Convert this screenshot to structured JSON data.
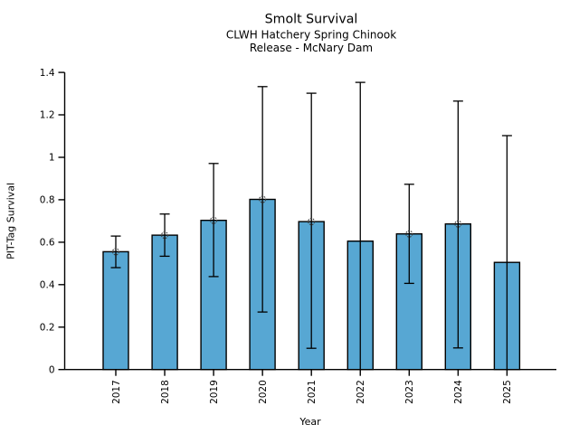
{
  "chart_data": {
    "type": "bar",
    "title": "Smolt Survival",
    "subtitle_lines": [
      "CLWH Hatchery Spring Chinook",
      "Release - McNary Dam"
    ],
    "xlabel": "Year",
    "ylabel": "PIT-Tag Survival",
    "ylim": [
      0,
      1.4
    ],
    "grid": false,
    "legend": "none",
    "ytick_values": [
      0,
      0.2,
      0.4,
      0.6,
      0.8,
      1,
      1.2,
      1.4
    ],
    "ytick_labels": [
      "0",
      "0.2",
      "0.4",
      "0.6",
      "0.8",
      "1",
      "1.2",
      "1.4"
    ],
    "categories": [
      "2017",
      "2018",
      "2019",
      "2020",
      "2021",
      "2022",
      "2023",
      "2024",
      "2025"
    ],
    "series": [
      {
        "name": "PIT-Tag Survival",
        "values": [
          0.555,
          0.633,
          0.703,
          0.802,
          0.697,
          0.605,
          0.639,
          0.686,
          0.505
        ],
        "error_low": [
          0.48,
          0.534,
          0.438,
          0.271,
          0.1,
          0.0,
          0.406,
          0.102,
          0.0
        ],
        "error_high": [
          0.629,
          0.733,
          0.971,
          1.333,
          1.302,
          1.353,
          0.873,
          1.265,
          1.102
        ],
        "point_marker": [
          true,
          true,
          true,
          true,
          true,
          false,
          true,
          true,
          false
        ]
      }
    ],
    "colors": {
      "bar_fill": "#57a7d3",
      "bar_edge": "#000000",
      "error_line": "#000000",
      "marker_edge": "#3f3f3f",
      "axis": "#000000",
      "text": "#000000"
    }
  }
}
